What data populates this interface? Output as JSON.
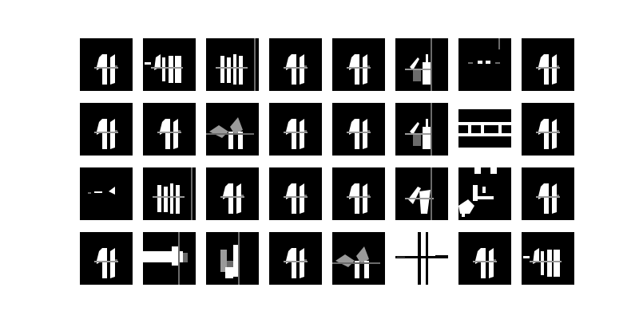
{
  "figure": {
    "rows": 4,
    "cols": 8,
    "tile_background": "#000000",
    "page_background": "#ffffff"
  },
  "tiles": [
    {
      "variant": "glyph-44"
    },
    {
      "variant": "glyph-44-wide"
    },
    {
      "variant": "glyph-44-bars"
    },
    {
      "variant": "glyph-44"
    },
    {
      "variant": "glyph-44"
    },
    {
      "variant": "glyph-4-1"
    },
    {
      "variant": "dots"
    },
    {
      "variant": "glyph-44"
    },
    {
      "variant": "glyph-44"
    },
    {
      "variant": "glyph-44"
    },
    {
      "variant": "glyph-44-gray"
    },
    {
      "variant": "glyph-44"
    },
    {
      "variant": "glyph-44"
    },
    {
      "variant": "glyph-4-1"
    },
    {
      "variant": "bands"
    },
    {
      "variant": "glyph-44"
    },
    {
      "variant": "small-dash"
    },
    {
      "variant": "glyph-44-bars"
    },
    {
      "variant": "glyph-44"
    },
    {
      "variant": "glyph-44"
    },
    {
      "variant": "glyph-44"
    },
    {
      "variant": "glyph-4-1-slant"
    },
    {
      "variant": "blobs"
    },
    {
      "variant": "glyph-44"
    },
    {
      "variant": "glyph-44"
    },
    {
      "variant": "wide-bar"
    },
    {
      "variant": "gray-u"
    },
    {
      "variant": "glyph-44"
    },
    {
      "variant": "glyph-44-gray"
    },
    {
      "variant": "cross"
    },
    {
      "variant": "glyph-44"
    },
    {
      "variant": "glyph-44-wide"
    }
  ]
}
